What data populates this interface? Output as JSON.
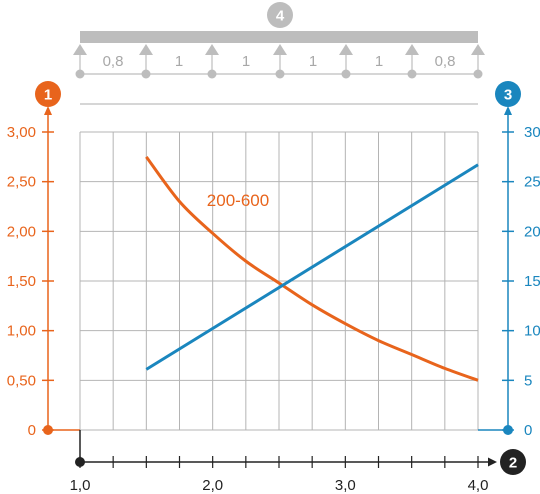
{
  "chart_data": {
    "type": "line",
    "series": [
      {
        "name": "200-600",
        "axis": "left",
        "color": "#e8641c",
        "x": [
          1.5,
          1.75,
          2.0,
          2.25,
          2.5,
          2.75,
          3.0,
          3.25,
          3.5,
          3.75,
          4.0
        ],
        "y": [
          2.75,
          2.3,
          1.98,
          1.7,
          1.48,
          1.26,
          1.07,
          0.9,
          0.76,
          0.62,
          0.5
        ]
      },
      {
        "axis": "right",
        "color": "#1a86be",
        "x": [
          1.5,
          4.0
        ],
        "y": [
          6.1,
          26.7
        ]
      }
    ],
    "xlim": [
      1.0,
      4.0
    ],
    "ylim_left": [
      0,
      3.0
    ],
    "ylim_right": [
      0,
      30
    ],
    "x_tick_labels": [
      "1,0",
      "2,0",
      "3,0",
      "4,0"
    ],
    "left_tick_labels": [
      "0",
      "0,50",
      "1,00",
      "1,50",
      "2,00",
      "2,50",
      "3,00"
    ],
    "right_tick_labels": [
      "0",
      "5",
      "10",
      "15",
      "20",
      "25",
      "30"
    ],
    "span_labels": [
      "0,8",
      "1",
      "1",
      "1",
      "1",
      "0,8"
    ],
    "axis_badges": {
      "left": "1",
      "x": "2",
      "right": "3",
      "top": "4"
    },
    "grid": true,
    "colors": {
      "left_axis": "#e8641c",
      "right_axis": "#1a86be",
      "grid": "#b4b4b4",
      "beam": "#bdbdbd"
    }
  }
}
